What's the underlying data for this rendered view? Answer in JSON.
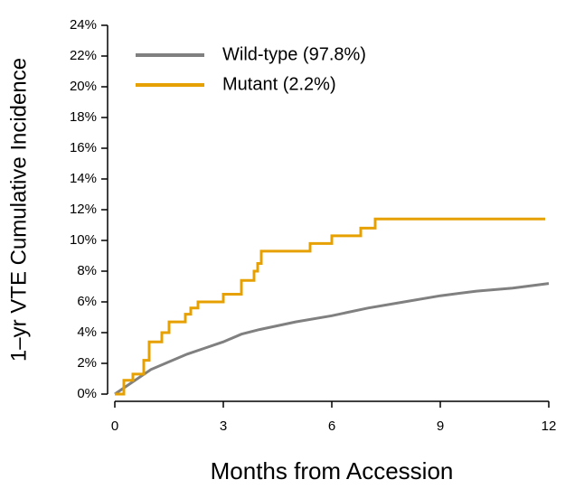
{
  "chart_data": {
    "type": "line",
    "xlabel": "Months from Accession",
    "ylabel": "1–yr VTE Cumulative Incidence",
    "xlim": [
      0,
      12
    ],
    "xticks": [
      0,
      3,
      6,
      9,
      12
    ],
    "ylim": [
      0,
      24
    ],
    "yticks": [
      {
        "value": 0,
        "label": "0%"
      },
      {
        "value": 2,
        "label": "2%"
      },
      {
        "value": 4,
        "label": "4%"
      },
      {
        "value": 6,
        "label": "6%"
      },
      {
        "value": 8,
        "label": "8%"
      },
      {
        "value": 10,
        "label": "10%"
      },
      {
        "value": 12,
        "label": "12%"
      },
      {
        "value": 14,
        "label": "14%"
      },
      {
        "value": 16,
        "label": "16%"
      },
      {
        "value": 18,
        "label": "18%"
      },
      {
        "value": 20,
        "label": "20%"
      },
      {
        "value": 22,
        "label": "22%"
      },
      {
        "value": 24,
        "label": "24%"
      }
    ],
    "legend": "upper left",
    "series": [
      {
        "name": "Wild-type (97.8%)",
        "color": "#808080",
        "x": [
          0,
          0.5,
          1,
          1.5,
          2,
          2.5,
          3,
          3.5,
          4,
          5,
          6,
          7,
          8,
          9,
          10,
          11,
          12
        ],
        "values": [
          0,
          0.8,
          1.6,
          2.1,
          2.6,
          3.0,
          3.4,
          3.9,
          4.2,
          4.7,
          5.1,
          5.6,
          6.0,
          6.4,
          6.7,
          6.9,
          7.2
        ]
      },
      {
        "name": "Mutant (2.2%)",
        "color": "#e6a100",
        "x": [
          0,
          0.25,
          0.25,
          0.5,
          0.5,
          0.8,
          0.8,
          0.95,
          0.95,
          1.3,
          1.3,
          1.5,
          1.5,
          1.95,
          1.95,
          2.1,
          2.1,
          2.3,
          2.3,
          3.0,
          3.0,
          3.5,
          3.5,
          3.85,
          3.85,
          3.95,
          3.95,
          4.05,
          4.05,
          5.4,
          5.4,
          6.0,
          6.0,
          6.8,
          6.8,
          7.2,
          7.2,
          11.9
        ],
        "values": [
          0,
          0,
          0.9,
          0.9,
          1.3,
          1.3,
          2.2,
          2.2,
          3.4,
          3.4,
          4.0,
          4.0,
          4.7,
          4.7,
          5.2,
          5.2,
          5.6,
          5.6,
          6.0,
          6.0,
          6.5,
          6.5,
          7.4,
          7.4,
          8.0,
          8.0,
          8.5,
          8.5,
          9.3,
          9.3,
          9.8,
          9.8,
          10.3,
          10.3,
          10.8,
          10.8,
          11.4,
          11.4
        ]
      }
    ]
  }
}
